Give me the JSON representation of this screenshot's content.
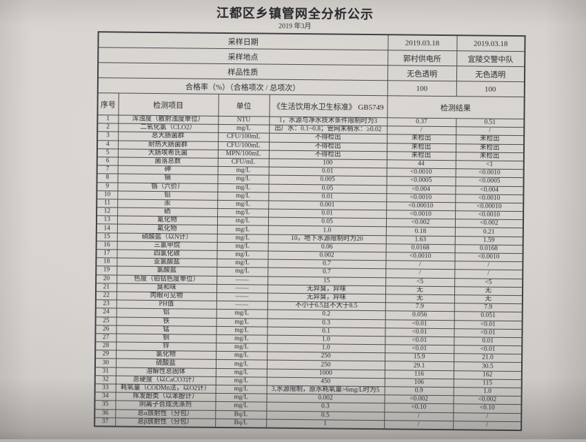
{
  "title": "江都区乡镇管网全分析公示",
  "subtitle": "2019 年3月",
  "colors": {
    "paper": "#d7d3cf",
    "ink": "#2b2b30",
    "table_border": "#47474d"
  },
  "info_rows": [
    {
      "label": "采样日期",
      "values": [
        "2019.03.18",
        "2019.03.18"
      ]
    },
    {
      "label": "采样地点",
      "values": [
        "郭村供电所",
        "宜陵交警中队"
      ]
    },
    {
      "label": "样品性质",
      "values": [
        "无色透明",
        "无色透明"
      ]
    },
    {
      "label": "合格率（%）（合格项次 / 总项次）",
      "values": [
        "100",
        "100"
      ]
    }
  ],
  "columns": {
    "index": "序号",
    "item": "检测项目",
    "unit": "单位",
    "standard": "《生活饮用水卫生标准》 GB5749",
    "result": "检测结果"
  },
  "rows": [
    {
      "no": "1",
      "item": "浑浊度（散射浊度单位）",
      "unit": "NTU",
      "standard": "1，水源与净水技术条件限制时为3",
      "r1": "0.37",
      "r2": "0.51"
    },
    {
      "no": "2",
      "item": "二氧化氯（CLO2）",
      "unit": "mg/L",
      "standard": "出厂水：0.1~0.8；管网末梢水：≥0.02",
      "r1": "/",
      "r2": "/"
    },
    {
      "no": "3",
      "item": "总大肠菌群",
      "unit": "CFU/100mL",
      "standard": "不得检出",
      "r1": "未检出",
      "r2": "未检出"
    },
    {
      "no": "4",
      "item": "耐热大肠菌群",
      "unit": "CFU/100mL",
      "standard": "不得检出",
      "r1": "未检出",
      "r2": "未检出"
    },
    {
      "no": "5",
      "item": "大肠埃希氏菌",
      "unit": "MPN/100mL",
      "standard": "不得检出",
      "r1": "未检出",
      "r2": "未检出"
    },
    {
      "no": "6",
      "item": "菌落总数",
      "unit": "CFU/mL",
      "standard": "100",
      "r1": "44",
      "r2": "<1"
    },
    {
      "no": "7",
      "item": "砷",
      "unit": "mg/L",
      "standard": "0.01",
      "r1": "<0.0010",
      "r2": "<0.0010"
    },
    {
      "no": "8",
      "item": "镉",
      "unit": "mg/L",
      "standard": "0.005",
      "r1": "<0.0005",
      "r2": "<0.0005"
    },
    {
      "no": "9",
      "item": "铬（六价）",
      "unit": "mg/L",
      "standard": "0.05",
      "r1": "<0.004",
      "r2": "<0.004"
    },
    {
      "no": "10",
      "item": "铅",
      "unit": "mg/L",
      "standard": "0.01",
      "r1": "<0.0010",
      "r2": "<0.0010"
    },
    {
      "no": "11",
      "item": "汞",
      "unit": "mg/L",
      "standard": "0.001",
      "r1": "<0.00010",
      "r2": "<0.00010"
    },
    {
      "no": "12",
      "item": "硒",
      "unit": "mg/L",
      "standard": "0.01",
      "r1": "<0.0010",
      "r2": "<0.0010"
    },
    {
      "no": "13",
      "item": "氰化物",
      "unit": "mg/L",
      "standard": "0.05",
      "r1": "<0.002",
      "r2": "<0.002"
    },
    {
      "no": "14",
      "item": "氟化物",
      "unit": "mg/L",
      "standard": "1.0",
      "r1": "0.18",
      "r2": "0.21"
    },
    {
      "no": "15",
      "item": "硝酸盐（以N计）",
      "unit": "mg/L",
      "standard": "10，地下水源限制时为20",
      "r1": "1.63",
      "r2": "1.59"
    },
    {
      "no": "16",
      "item": "三氯甲烷",
      "unit": "mg/L",
      "standard": "0.06",
      "r1": "0.0168",
      "r2": "0.0168"
    },
    {
      "no": "17",
      "item": "四氯化碳",
      "unit": "mg/L",
      "standard": "0.002",
      "r1": "<0.0010",
      "r2": "<0.0010"
    },
    {
      "no": "18",
      "item": "亚氯酸盐",
      "unit": "mg/L",
      "standard": "0.7",
      "r1": "/",
      "r2": "/"
    },
    {
      "no": "19",
      "item": "氯酸盐",
      "unit": "mg/L",
      "standard": "0.7",
      "r1": "/",
      "r2": "/"
    },
    {
      "no": "20",
      "item": "色度（铂钴色度单位）",
      "unit": "——",
      "standard": "15",
      "r1": "<5",
      "r2": "<5"
    },
    {
      "no": "21",
      "item": "臭和味",
      "unit": "——",
      "standard": "无异臭，异味",
      "r1": "无",
      "r2": "无"
    },
    {
      "no": "22",
      "item": "肉眼可见物",
      "unit": "——",
      "standard": "无异臭，异味",
      "r1": "无",
      "r2": "无"
    },
    {
      "no": "23",
      "item": "PH值",
      "unit": "——",
      "standard": "不小于6.5且不大于8.5",
      "r1": "7.9",
      "r2": "7.9"
    },
    {
      "no": "24",
      "item": "铝",
      "unit": "mg/L",
      "standard": "0.2",
      "r1": "0.056",
      "r2": "0.051"
    },
    {
      "no": "25",
      "item": "铁",
      "unit": "mg/L",
      "standard": "0.3",
      "r1": "<0.01",
      "r2": "<0.01"
    },
    {
      "no": "26",
      "item": "锰",
      "unit": "mg/L",
      "standard": "0.1",
      "r1": "<0.01",
      "r2": "<0.01"
    },
    {
      "no": "27",
      "item": "铜",
      "unit": "mg/L",
      "standard": "1.0",
      "r1": "<0.01",
      "r2": "0.01"
    },
    {
      "no": "28",
      "item": "锌",
      "unit": "mg/L",
      "standard": "1.0",
      "r1": "<0.01",
      "r2": "<0.01"
    },
    {
      "no": "29",
      "item": "氯化物",
      "unit": "mg/L",
      "standard": "250",
      "r1": "15.9",
      "r2": "21.0"
    },
    {
      "no": "30",
      "item": "硫酸盐",
      "unit": "mg/L",
      "standard": "250",
      "r1": "29.1",
      "r2": "30.5"
    },
    {
      "no": "31",
      "item": "溶解性总固体",
      "unit": "mg/L",
      "standard": "1000",
      "r1": "116",
      "r2": "162"
    },
    {
      "no": "32",
      "item": "总硬度（以CaCO3计）",
      "unit": "mg/L",
      "standard": "450",
      "r1": "106",
      "r2": "115"
    },
    {
      "no": "33",
      "item": "耗氧量（CODMn法，以O2计）",
      "unit": "mg/L",
      "standard": "3,水源限制，原水耗氧量>6mg/L时为5",
      "r1": "0.9",
      "r2": "1.0"
    },
    {
      "no": "34",
      "item": "挥发酚类（以苯酚计）",
      "unit": "mg/L",
      "standard": "0.002",
      "r1": "<0.002",
      "r2": "<0.002"
    },
    {
      "no": "35",
      "item": "阴离子合成洗涤剂",
      "unit": "mg/L",
      "standard": "0.3",
      "r1": "<0.10",
      "r2": "<0.10"
    },
    {
      "no": "36",
      "item": "总α放射性（分包）",
      "unit": "Bq/L",
      "standard": "0.5",
      "r1": "/",
      "r2": "/"
    },
    {
      "no": "37",
      "item": "总β放射性（分包）",
      "unit": "Bq/L",
      "standard": "1",
      "r1": "/",
      "r2": "/"
    }
  ]
}
